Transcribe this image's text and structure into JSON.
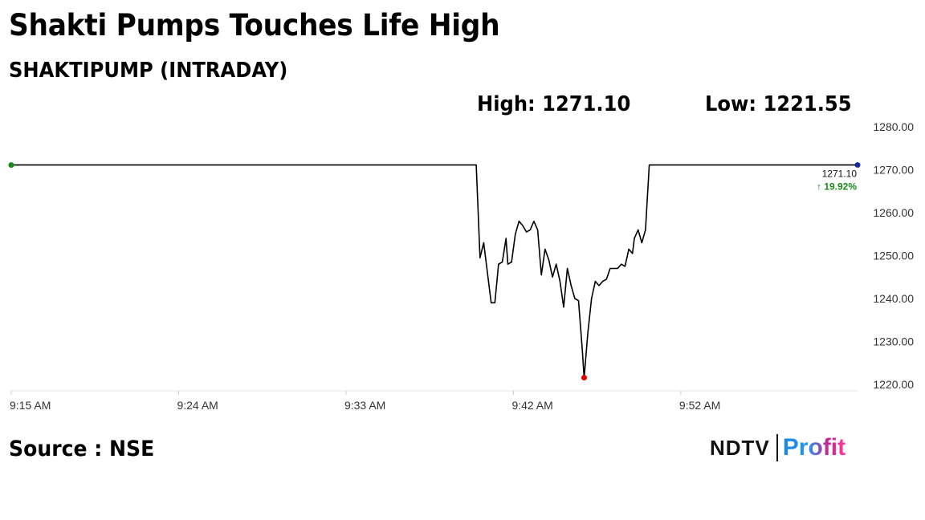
{
  "header": {
    "title": "Shakti Pumps Touches Life High",
    "subtitle": "SHAKTIPUMP (INTRADAY)",
    "high_label": "High: 1271.10",
    "low_label": "Low: 1221.55"
  },
  "footer": {
    "source": "Source : NSE",
    "logo_ndtv": "NDTV",
    "logo_profit": "Profit"
  },
  "colors": {
    "line": "#000000",
    "start_marker": "#1a8a1a",
    "low_marker": "#e00000",
    "end_marker": "#1a2a9a",
    "change_up": "#1a8a1a"
  },
  "chart_data": {
    "type": "line",
    "title": "SHAKTIPUMP (INTRADAY)",
    "xlabel": "",
    "ylabel": "",
    "x_ticks": [
      "9:15 AM",
      "9:24 AM",
      "9:33 AM",
      "9:42 AM",
      "9:52 AM"
    ],
    "x_tick_minutes": [
      0,
      9,
      18,
      27,
      36
    ],
    "xlim": [
      0,
      45.5
    ],
    "y_ticks": [
      1220,
      1230,
      1240,
      1250,
      1260,
      1270,
      1280
    ],
    "y_tick_labels": [
      "1220.00",
      "1230.00",
      "1240.00",
      "1250.00",
      "1260.00",
      "1270.00",
      "1280.00"
    ],
    "ylim": [
      1218.5,
      1281.5
    ],
    "last_value_label": "1271.10",
    "change_label": "↑ 19.92%",
    "series": [
      {
        "minutes": [
          0,
          25.0,
          25.2,
          25.4,
          25.8,
          26.0,
          26.2,
          26.4,
          26.6,
          26.7,
          26.9,
          27.1,
          27.3,
          27.5,
          27.7,
          27.9,
          28.1,
          28.3,
          28.5,
          28.7,
          28.9,
          29.1,
          29.3,
          29.5,
          29.7,
          29.9,
          30.1,
          30.3,
          30.5,
          30.7,
          30.8,
          31.0,
          31.2,
          31.4,
          31.6,
          31.8,
          32.0,
          32.2,
          32.4,
          32.6,
          32.8,
          33.0,
          33.2,
          33.4,
          33.5,
          33.7,
          33.9,
          34.1,
          34.3,
          45.5
        ],
        "values": [
          1271.1,
          1271.1,
          1249.5,
          1253.0,
          1239.0,
          1239.0,
          1248.0,
          1248.5,
          1254.0,
          1248.0,
          1248.5,
          1255.0,
          1258.0,
          1257.0,
          1255.5,
          1256.0,
          1258.0,
          1256.0,
          1245.5,
          1251.5,
          1249.0,
          1245.0,
          1248.0,
          1244.0,
          1238.0,
          1247.0,
          1243.0,
          1240.0,
          1239.5,
          1228.0,
          1221.55,
          1232.0,
          1240.0,
          1244.0,
          1243.0,
          1244.0,
          1244.5,
          1247.0,
          1247.0,
          1247.0,
          1248.0,
          1247.5,
          1251.5,
          1250.5,
          1254.0,
          1256.0,
          1253.0,
          1256.0,
          1271.1,
          1271.1
        ]
      }
    ]
  }
}
